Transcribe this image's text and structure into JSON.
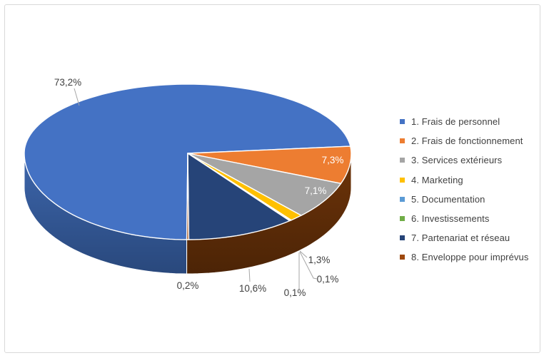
{
  "frame": {
    "background": "#FFFFFF",
    "border_color": "#D9D9D9"
  },
  "chart_data": {
    "type": "pie",
    "style": "3d",
    "direction": "clockwise",
    "start_angle_deg": 180.36,
    "legend_position": "right",
    "label_color": "#404040",
    "inside_label_color": "#FFFFFF",
    "leader_line_color": "#A6A6A6",
    "slices": [
      {
        "label": "1. Frais de personnel",
        "value": 73.2,
        "display": "73,2%",
        "color": "#4472C4",
        "side": [
          "#3D66AC",
          "#29487C"
        ]
      },
      {
        "label": "2. Frais de fonctionnement",
        "value": 7.3,
        "display": "7,3%",
        "color": "#ED7D31",
        "side": [
          "#94511B",
          "#6E3A10"
        ]
      },
      {
        "label": "3. Services extérieurs",
        "value": 7.1,
        "display": "7,1%",
        "color": "#A5A5A5",
        "side": [
          "#525252",
          "#3C3C3C"
        ]
      },
      {
        "label": "4. Marketing",
        "value": 1.3,
        "display": "1,3%",
        "color": "#FFC000",
        "side": [
          "#9A7A00",
          "#6F5800"
        ]
      },
      {
        "label": "5. Documentation",
        "value": 0.1,
        "display": "0,1%",
        "color": "#5B9BD5",
        "side": [
          "#3E6E9E",
          "#2E5276"
        ]
      },
      {
        "label": "6. Investissements",
        "value": 0.1,
        "display": "0,1%",
        "color": "#70AD47",
        "side": [
          "#4E7A31",
          "#3A5B24"
        ]
      },
      {
        "label": "7. Partenariat et réseau",
        "value": 10.6,
        "display": "10,6%",
        "color": "#264478",
        "side": [
          "#22395F",
          "#131F38"
        ]
      },
      {
        "label": "8. Enveloppe pour imprévus",
        "value": 0.2,
        "display": "0,2%",
        "color": "#9E480E",
        "side": [
          "#6E3409",
          "#4C2406"
        ]
      }
    ]
  }
}
